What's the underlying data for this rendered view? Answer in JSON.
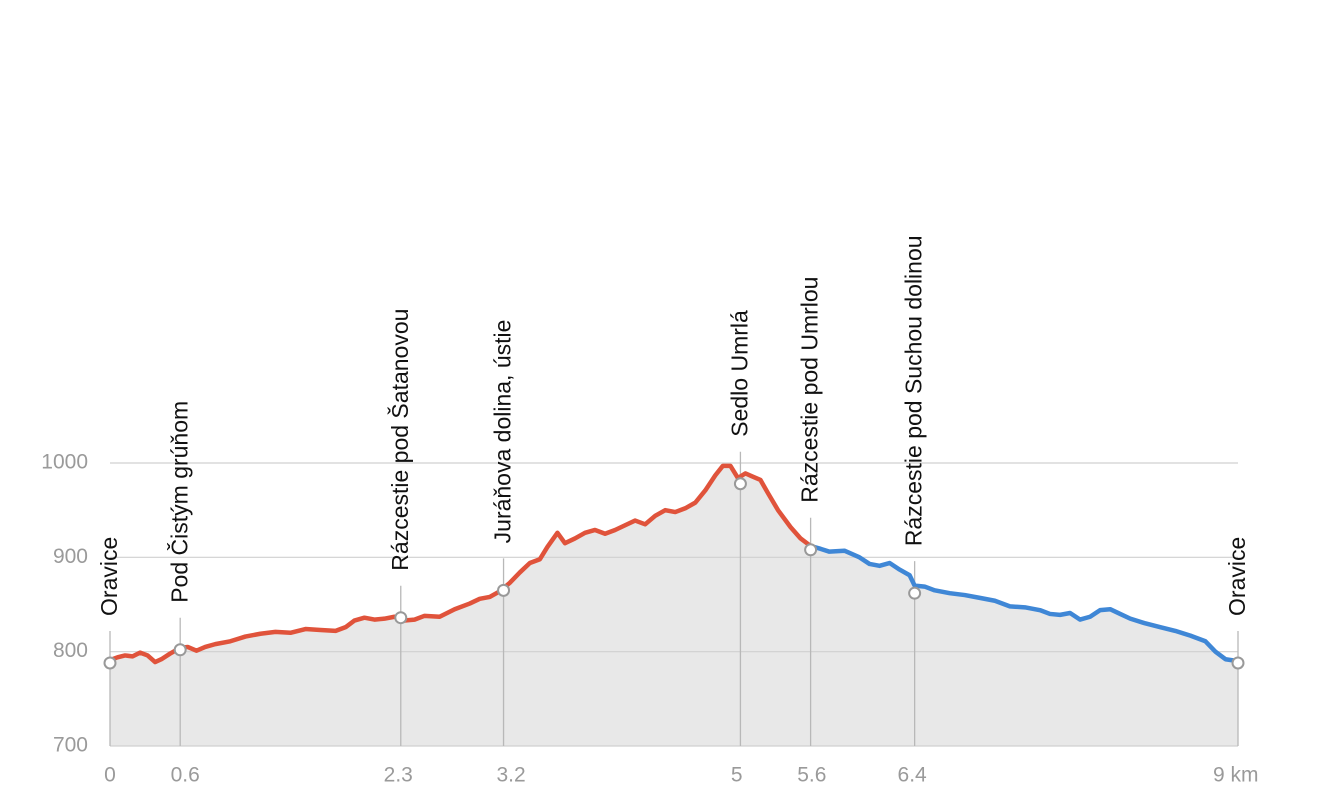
{
  "chart_data": {
    "type": "line",
    "xlim": [
      0,
      9
    ],
    "ylim": [
      700,
      1000
    ],
    "xticks": [
      0,
      0.6,
      2.3,
      3.2,
      5,
      5.6,
      6.4,
      {
        "value": 9,
        "label": "9 km"
      }
    ],
    "yticks": [
      700,
      800,
      900,
      1000
    ],
    "grid": true,
    "area_color": "#e8e8e8",
    "series": [
      {
        "color": "#e0533b",
        "x": [
          0,
          0.06,
          0.12,
          0.18,
          0.24,
          0.3,
          0.36,
          0.41,
          0.48,
          0.56,
          0.62,
          0.69,
          0.76,
          0.84,
          0.96,
          1.08,
          1.2,
          1.32,
          1.44,
          1.56,
          1.68,
          1.8,
          1.88,
          1.95,
          2.03,
          2.11,
          2.19,
          2.27,
          2.35,
          2.43,
          2.51,
          2.63,
          2.75,
          2.87,
          2.95,
          3.03,
          3.11,
          3.19,
          3.27,
          3.35,
          3.43,
          3.49,
          3.57,
          3.63,
          3.71,
          3.79,
          3.87,
          3.95,
          4.03,
          4.11,
          4.19,
          4.27,
          4.35,
          4.43,
          4.51,
          4.59,
          4.67,
          4.75,
          4.83,
          4.89,
          4.95,
          5.01,
          5.07,
          5.12,
          5.19,
          5.25,
          5.33,
          5.43,
          5.51,
          5.59
        ],
        "values": [
          791,
          794,
          796,
          795,
          799,
          796,
          789,
          792,
          798,
          804,
          805,
          801,
          805,
          808,
          811,
          816,
          819,
          821,
          820,
          824,
          823,
          822,
          826,
          833,
          836,
          834,
          835,
          837,
          833,
          834,
          838,
          837,
          845,
          851,
          856,
          858,
          864,
          873,
          884,
          894,
          898,
          911,
          926,
          915,
          920,
          926,
          929,
          925,
          929,
          934,
          939,
          935,
          944,
          950,
          948,
          952,
          958,
          971,
          987,
          997,
          997,
          984,
          989,
          986,
          982,
          968,
          950,
          932,
          920,
          912
        ]
      },
      {
        "color": "#3f87d6",
        "x": [
          5.59,
          5.67,
          5.74,
          5.86,
          5.98,
          6.06,
          6.14,
          6.22,
          6.3,
          6.38,
          6.42,
          6.5,
          6.58,
          6.7,
          6.82,
          6.94,
          7.06,
          7.18,
          7.3,
          7.42,
          7.5,
          7.58,
          7.66,
          7.74,
          7.82,
          7.9,
          7.98,
          8.06,
          8.14,
          8.26,
          8.38,
          8.5,
          8.62,
          8.74,
          8.82,
          8.9,
          9.0
        ],
        "values": [
          912,
          909,
          906,
          907,
          900,
          893,
          891,
          894,
          887,
          881,
          870,
          869,
          865,
          862,
          860,
          857,
          854,
          848,
          847,
          844,
          840,
          839,
          841,
          834,
          837,
          844,
          845,
          840,
          835,
          830,
          826,
          822,
          817,
          811,
          800,
          792,
          790
        ]
      }
    ],
    "waypoints": [
      {
        "name": "Oravice",
        "x": 0,
        "value": 788
      },
      {
        "name": "Pod Čistým grúňom",
        "x": 0.56,
        "value": 802
      },
      {
        "name": "Rázcestie pod Šatanovou",
        "x": 2.32,
        "value": 836
      },
      {
        "name": "Juráňova dolina, ústie",
        "x": 3.14,
        "value": 865
      },
      {
        "name": "Sedlo Umrlá",
        "x": 5.03,
        "value": 978
      },
      {
        "name": "Rázcestie pod Umrlou",
        "x": 5.59,
        "value": 908
      },
      {
        "name": "Rázcestie pod Suchou dolinou",
        "x": 6.42,
        "value": 862
      },
      {
        "name": "Oravice",
        "x": 9,
        "value": 788
      }
    ]
  }
}
